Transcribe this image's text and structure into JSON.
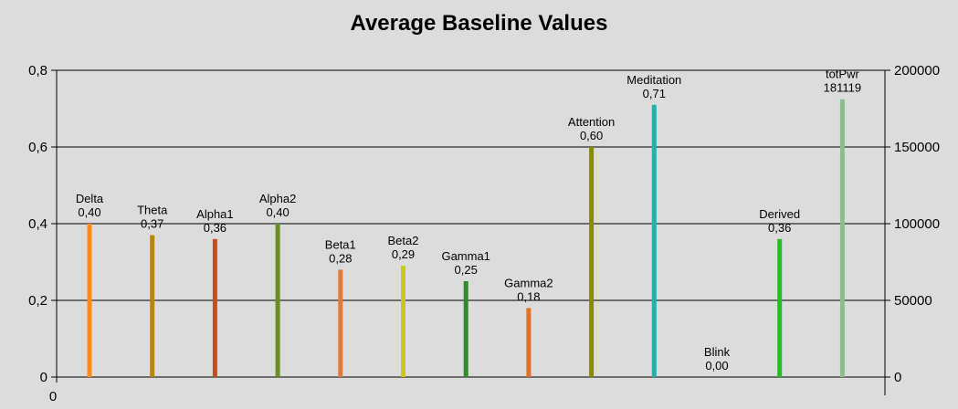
{
  "chart_data": {
    "type": "bar",
    "title": "Average Baseline Values",
    "xlabel": "",
    "ylabel": "",
    "x_tick_labels": [
      "0"
    ],
    "y_left": {
      "ylim": [
        0,
        0.8
      ],
      "ticks": [
        "0",
        "0,2",
        "0,4",
        "0,6",
        "0,8"
      ]
    },
    "y_right": {
      "ylim": [
        0,
        200000
      ],
      "ticks": [
        "0",
        "50000",
        "100000",
        "150000",
        "200000"
      ]
    },
    "grid": true,
    "legend": "none",
    "series": [
      {
        "name": "Delta",
        "value": 0.4,
        "value_label": "0,40",
        "axis": "left",
        "color": "#ff8c1a"
      },
      {
        "name": "Theta",
        "value": 0.37,
        "value_label": "0,37",
        "axis": "left",
        "color": "#b8860b"
      },
      {
        "name": "Alpha1",
        "value": 0.36,
        "value_label": "0,36",
        "axis": "left",
        "color": "#c0501e"
      },
      {
        "name": "Alpha2",
        "value": 0.4,
        "value_label": "0,40",
        "axis": "left",
        "color": "#6b8e23"
      },
      {
        "name": "Beta1",
        "value": 0.28,
        "value_label": "0,28",
        "axis": "left",
        "color": "#e07b39"
      },
      {
        "name": "Beta2",
        "value": 0.29,
        "value_label": "0,29",
        "axis": "left",
        "color": "#c8c81e"
      },
      {
        "name": "Gamma1",
        "value": 0.25,
        "value_label": "0,25",
        "axis": "left",
        "color": "#2e8b2e"
      },
      {
        "name": "Gamma2",
        "value": 0.18,
        "value_label": "0,18",
        "axis": "left",
        "color": "#e0702a"
      },
      {
        "name": "Attention",
        "value": 0.6,
        "value_label": "0,60",
        "axis": "left",
        "color": "#8b8b00"
      },
      {
        "name": "Meditation",
        "value": 0.71,
        "value_label": "0,71",
        "axis": "left",
        "color": "#20b2aa"
      },
      {
        "name": "Blink",
        "value": 0.0,
        "value_label": "0,00",
        "axis": "left",
        "color": "#808080"
      },
      {
        "name": "Derived",
        "value": 0.36,
        "value_label": "0,36",
        "axis": "left",
        "color": "#22c022"
      },
      {
        "name": "totPwr",
        "value": 181119,
        "value_label": "181119",
        "axis": "right",
        "color": "#8fbc8f"
      }
    ]
  }
}
